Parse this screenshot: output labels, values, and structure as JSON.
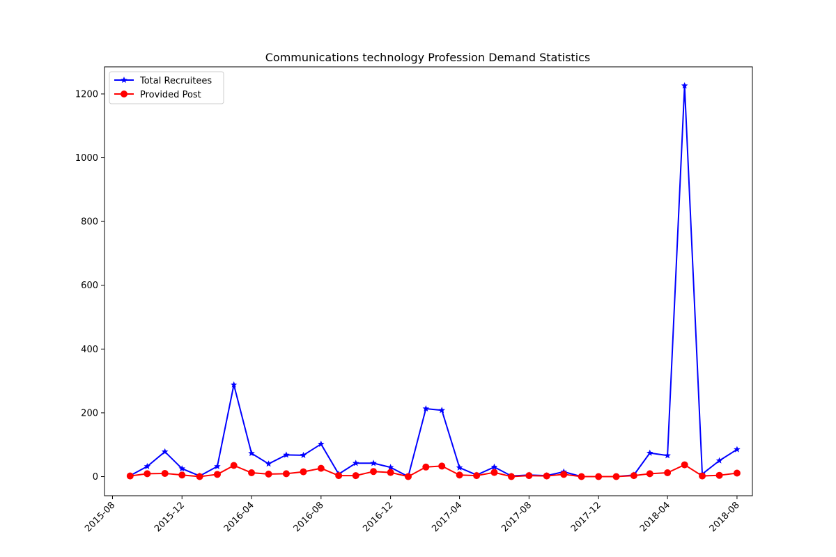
{
  "chart_data": {
    "type": "line",
    "title": "Communications technology Profession Demand Statistics",
    "xlabel": "",
    "ylabel": "",
    "x": [
      "2015-09",
      "2015-10",
      "2015-11",
      "2015-12",
      "2016-01",
      "2016-02",
      "2016-03",
      "2016-04",
      "2016-05",
      "2016-06",
      "2016-07",
      "2016-08",
      "2016-09",
      "2016-10",
      "2016-11",
      "2016-12",
      "2017-01",
      "2017-02",
      "2017-03",
      "2017-04",
      "2017-05",
      "2017-06",
      "2017-07",
      "2017-08",
      "2017-09",
      "2017-10",
      "2017-11",
      "2017-12",
      "2018-01",
      "2018-02",
      "2018-03",
      "2018-04",
      "2018-05",
      "2018-06",
      "2018-07",
      "2018-08"
    ],
    "xlim": [
      "2015-07-18",
      "2018-08-28"
    ],
    "ylim": [
      -60,
      1285
    ],
    "x_ticks": [
      "2015-08",
      "2015-12",
      "2016-04",
      "2016-08",
      "2016-12",
      "2017-04",
      "2017-08",
      "2017-12",
      "2018-04",
      "2018-08"
    ],
    "y_ticks": [
      0,
      200,
      400,
      600,
      800,
      1000,
      1200
    ],
    "grid": false,
    "legend_position": "top-left",
    "series": [
      {
        "name": "Total Recruitees",
        "color": "#0000ff",
        "marker": "star",
        "values": [
          3,
          32,
          78,
          25,
          2,
          32,
          288,
          73,
          40,
          68,
          67,
          102,
          8,
          42,
          42,
          29,
          0,
          213,
          208,
          28,
          5,
          30,
          2,
          5,
          3,
          15,
          0,
          0,
          0,
          5,
          74,
          66,
          1226,
          8,
          50,
          85
        ]
      },
      {
        "name": "Provided Post",
        "color": "#ff0000",
        "marker": "circle",
        "values": [
          2,
          9,
          10,
          5,
          0,
          7,
          35,
          12,
          8,
          9,
          15,
          26,
          3,
          3,
          16,
          13,
          0,
          30,
          33,
          5,
          3,
          13,
          0,
          3,
          2,
          7,
          0,
          0,
          0,
          3,
          9,
          12,
          37,
          2,
          4,
          11
        ]
      }
    ]
  }
}
